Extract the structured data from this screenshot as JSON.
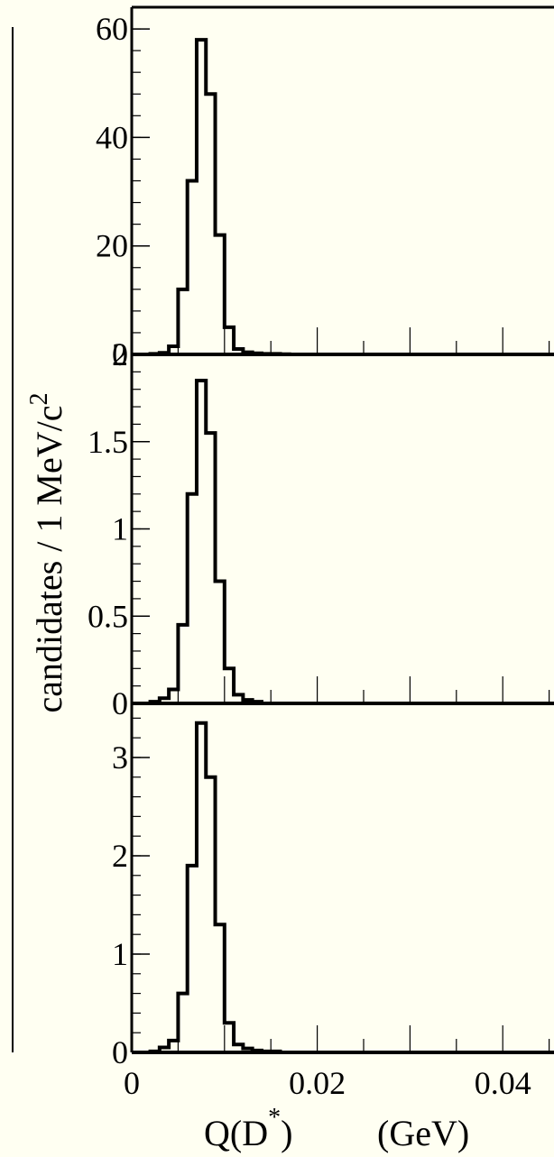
{
  "chart_data": {
    "type": "histogram",
    "figure": {
      "ylabel_text": "candidates / 1 MeV/c",
      "ylabel_superscript": "2",
      "xlabel_main": "Q(D",
      "xlabel_superscript": "*",
      "xlabel_close": ")",
      "xlabel_unit": "(GeV)",
      "background": "#fffff2",
      "line_color": "#000000"
    },
    "x": [
      0.0,
      0.001,
      0.002,
      0.003,
      0.004,
      0.005,
      0.006,
      0.007,
      0.008,
      0.009,
      0.01,
      0.011,
      0.012,
      0.013,
      0.014,
      0.015,
      0.016,
      0.017,
      0.018,
      0.019,
      0.02
    ],
    "bin_width": 0.001,
    "xlim": [
      0,
      0.05
    ],
    "x_ticks": [
      0,
      0.02,
      0.04
    ],
    "x_tick_labels": [
      "0",
      "0.02",
      "0.04"
    ],
    "panels": [
      {
        "ylim": [
          0,
          64
        ],
        "y_ticks": [
          0,
          20,
          40,
          60
        ],
        "y_tick_labels": [
          "0",
          "20",
          "40",
          "60"
        ],
        "values": [
          0,
          0,
          0.1,
          0.3,
          1.5,
          12,
          32,
          58,
          48,
          22,
          5,
          1,
          0.4,
          0.2,
          0.1,
          0.1,
          0.05,
          0,
          0,
          0,
          0
        ]
      },
      {
        "ylim": [
          0,
          2
        ],
        "y_ticks": [
          0,
          0.5,
          1,
          1.5,
          2
        ],
        "y_tick_labels": [
          "0",
          "0.5",
          "1",
          "1.5",
          "2"
        ],
        "values": [
          0,
          0,
          0.01,
          0.03,
          0.08,
          0.45,
          1.2,
          1.85,
          1.55,
          0.7,
          0.2,
          0.05,
          0.02,
          0.01,
          0,
          0,
          0,
          0,
          0,
          0,
          0
        ]
      },
      {
        "ylim": [
          0,
          3.55
        ],
        "y_ticks": [
          0,
          1,
          2,
          3
        ],
        "y_tick_labels": [
          "0",
          "1",
          "2",
          "3"
        ],
        "values": [
          0,
          0,
          0.01,
          0.05,
          0.12,
          0.6,
          1.9,
          3.35,
          2.8,
          1.3,
          0.3,
          0.08,
          0.04,
          0.02,
          0.01,
          0.01,
          0,
          0,
          0,
          0,
          0
        ]
      }
    ]
  }
}
